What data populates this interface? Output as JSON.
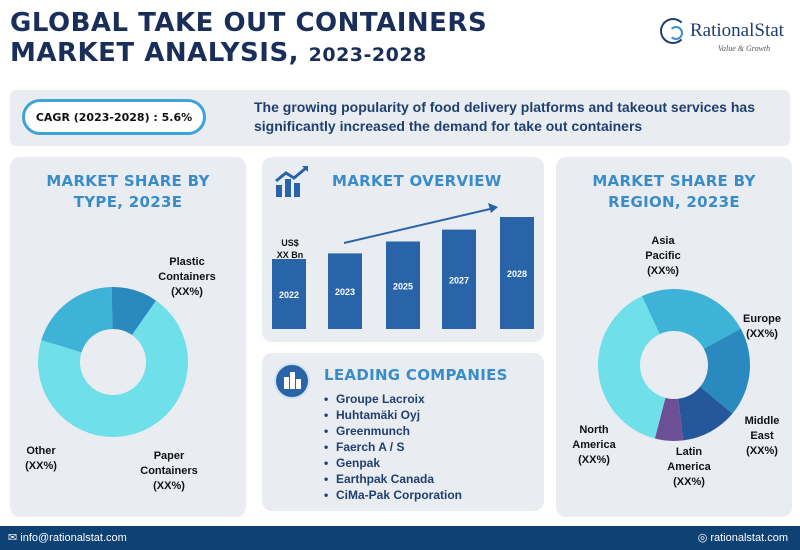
{
  "header": {
    "title_line1": "GLOBAL TAKE OUT CONTAINERS",
    "title_line2": "MARKET ANALYSIS,",
    "title_years": "2023-2028",
    "logo_name": "RationalStat",
    "logo_tagline": "Value & Growth"
  },
  "banner": {
    "cagr": "CAGR (2023-2028) : 5.6%",
    "text": "The growing popularity of food delivery platforms and takeout services has significantly increased the demand for take out containers"
  },
  "type_panel": {
    "title_line1": "MARKET SHARE BY",
    "title_line2": "TYPE, 2023E",
    "labels": {
      "plastic": [
        "Plastic",
        "Containers",
        "(XX%)"
      ],
      "paper": [
        "Paper",
        "Containers",
        "(XX%)"
      ],
      "other": [
        "Other",
        "(XX%)"
      ]
    }
  },
  "overview_panel": {
    "title": "MARKET OVERVIEW",
    "unit_line1": "US$",
    "unit_line2": "XX Bn"
  },
  "companies_panel": {
    "title": "LEADING COMPANIES",
    "items": [
      "Groupe Lacroix",
      "Huhtamäki Oyj",
      "Greenmunch",
      "Faerch A / S",
      "Genpak",
      "Earthpak Canada",
      "CiMa-Pak Corporation"
    ]
  },
  "region_panel": {
    "title_line1": "MARKET SHARE BY",
    "title_line2": "REGION, 2023E",
    "labels": {
      "asia": [
        "Asia",
        "Pacific",
        "(XX%)"
      ],
      "europe": [
        "Europe",
        "(XX%)"
      ],
      "mea": [
        "Middle",
        "East",
        "(XX%)"
      ],
      "latam": [
        "Latin",
        "America",
        "(XX%)"
      ],
      "na": [
        "North",
        "America",
        "(XX%)"
      ]
    }
  },
  "footer": {
    "email": "✉ info@rationalstat.com",
    "site": "◎ rationalstat.com"
  },
  "colors": {
    "light_cyan": "#6fe0ea",
    "mid_blue": "#3fb2d8",
    "steel_blue": "#2a8ac0",
    "dark_blue": "#25589a",
    "purple": "#6d4f96",
    "bar_blue": "#2a64a8"
  },
  "chart_data": [
    {
      "type": "pie",
      "title": "MARKET SHARE BY TYPE, 2023E",
      "categories": [
        "Plastic Containers",
        "Paper Containers",
        "Other"
      ],
      "values": [
        70,
        20,
        10
      ],
      "colors": [
        "#6fe0ea",
        "#3fb2d8",
        "#2a8ac0"
      ]
    },
    {
      "type": "bar",
      "title": "MARKET OVERVIEW",
      "ylabel": "US$ XX Bn",
      "categories": [
        "2022",
        "2023",
        "2025",
        "2027",
        "2028"
      ],
      "values": [
        1.0,
        1.08,
        1.25,
        1.42,
        1.6
      ]
    },
    {
      "type": "pie",
      "title": "MARKET SHARE BY REGION, 2023E",
      "categories": [
        "Asia Pacific",
        "Europe",
        "Middle East",
        "Latin America",
        "North America"
      ],
      "values": [
        24,
        19,
        12,
        6,
        39
      ],
      "colors": [
        "#3fb2d8",
        "#2a8ac0",
        "#25589a",
        "#6d4f96",
        "#6fe0ea"
      ]
    }
  ]
}
